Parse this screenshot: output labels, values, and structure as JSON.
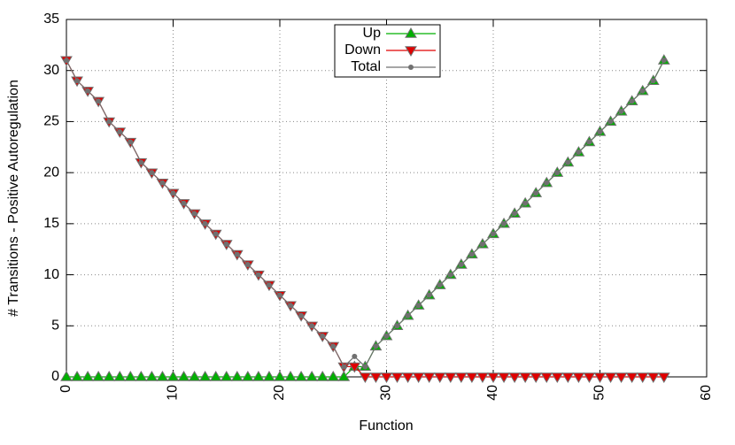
{
  "chart_data": {
    "type": "line",
    "xlabel": "Function",
    "ylabel": "# Transitions - Positive Autoregulation",
    "x": [
      0,
      1,
      2,
      3,
      4,
      5,
      6,
      7,
      8,
      9,
      10,
      11,
      12,
      13,
      14,
      15,
      16,
      17,
      18,
      19,
      20,
      21,
      22,
      23,
      24,
      25,
      26,
      27,
      28,
      29,
      30,
      31,
      32,
      33,
      34,
      35,
      36,
      37,
      38,
      39,
      40,
      41,
      42,
      43,
      44,
      45,
      46,
      47,
      48,
      49,
      50,
      51,
      52,
      53,
      54,
      55,
      56
    ],
    "series": [
      {
        "name": "Up",
        "color": "#00b000",
        "marker": "triangle-up",
        "values": [
          0,
          0,
          0,
          0,
          0,
          0,
          0,
          0,
          0,
          0,
          0,
          0,
          0,
          0,
          0,
          0,
          0,
          0,
          0,
          0,
          0,
          0,
          0,
          0,
          0,
          0,
          0,
          1,
          1,
          3,
          4,
          5,
          6,
          7,
          8,
          9,
          10,
          11,
          12,
          13,
          14,
          15,
          16,
          17,
          18,
          19,
          20,
          21,
          22,
          23,
          24,
          25,
          26,
          27,
          28,
          29,
          31
        ]
      },
      {
        "name": "Down",
        "color": "#e00000",
        "marker": "triangle-down",
        "values": [
          31,
          29,
          28,
          27,
          25,
          24,
          23,
          21,
          20,
          19,
          18,
          17,
          16,
          15,
          14,
          13,
          12,
          11,
          10,
          9,
          8,
          7,
          6,
          5,
          4,
          3,
          1,
          1,
          0,
          0,
          0,
          0,
          0,
          0,
          0,
          0,
          0,
          0,
          0,
          0,
          0,
          0,
          0,
          0,
          0,
          0,
          0,
          0,
          0,
          0,
          0,
          0,
          0,
          0,
          0,
          0,
          0
        ]
      },
      {
        "name": "Total",
        "color": "#707070",
        "marker": "dot",
        "values": [
          31,
          29,
          28,
          27,
          25,
          24,
          23,
          21,
          20,
          19,
          18,
          17,
          16,
          15,
          14,
          13,
          12,
          11,
          10,
          9,
          8,
          7,
          6,
          5,
          4,
          3,
          1,
          2,
          1,
          3,
          4,
          5,
          6,
          7,
          8,
          9,
          10,
          11,
          12,
          13,
          14,
          15,
          16,
          17,
          18,
          19,
          20,
          21,
          22,
          23,
          24,
          25,
          26,
          27,
          28,
          29,
          31
        ]
      }
    ],
    "xlim": [
      0,
      60
    ],
    "xticks": [
      0,
      10,
      20,
      30,
      40,
      50,
      60
    ],
    "ylim": [
      0,
      35
    ],
    "yticks": [
      0,
      5,
      10,
      15,
      20,
      25,
      30,
      35
    ],
    "grid": true,
    "legend": "top-center"
  }
}
